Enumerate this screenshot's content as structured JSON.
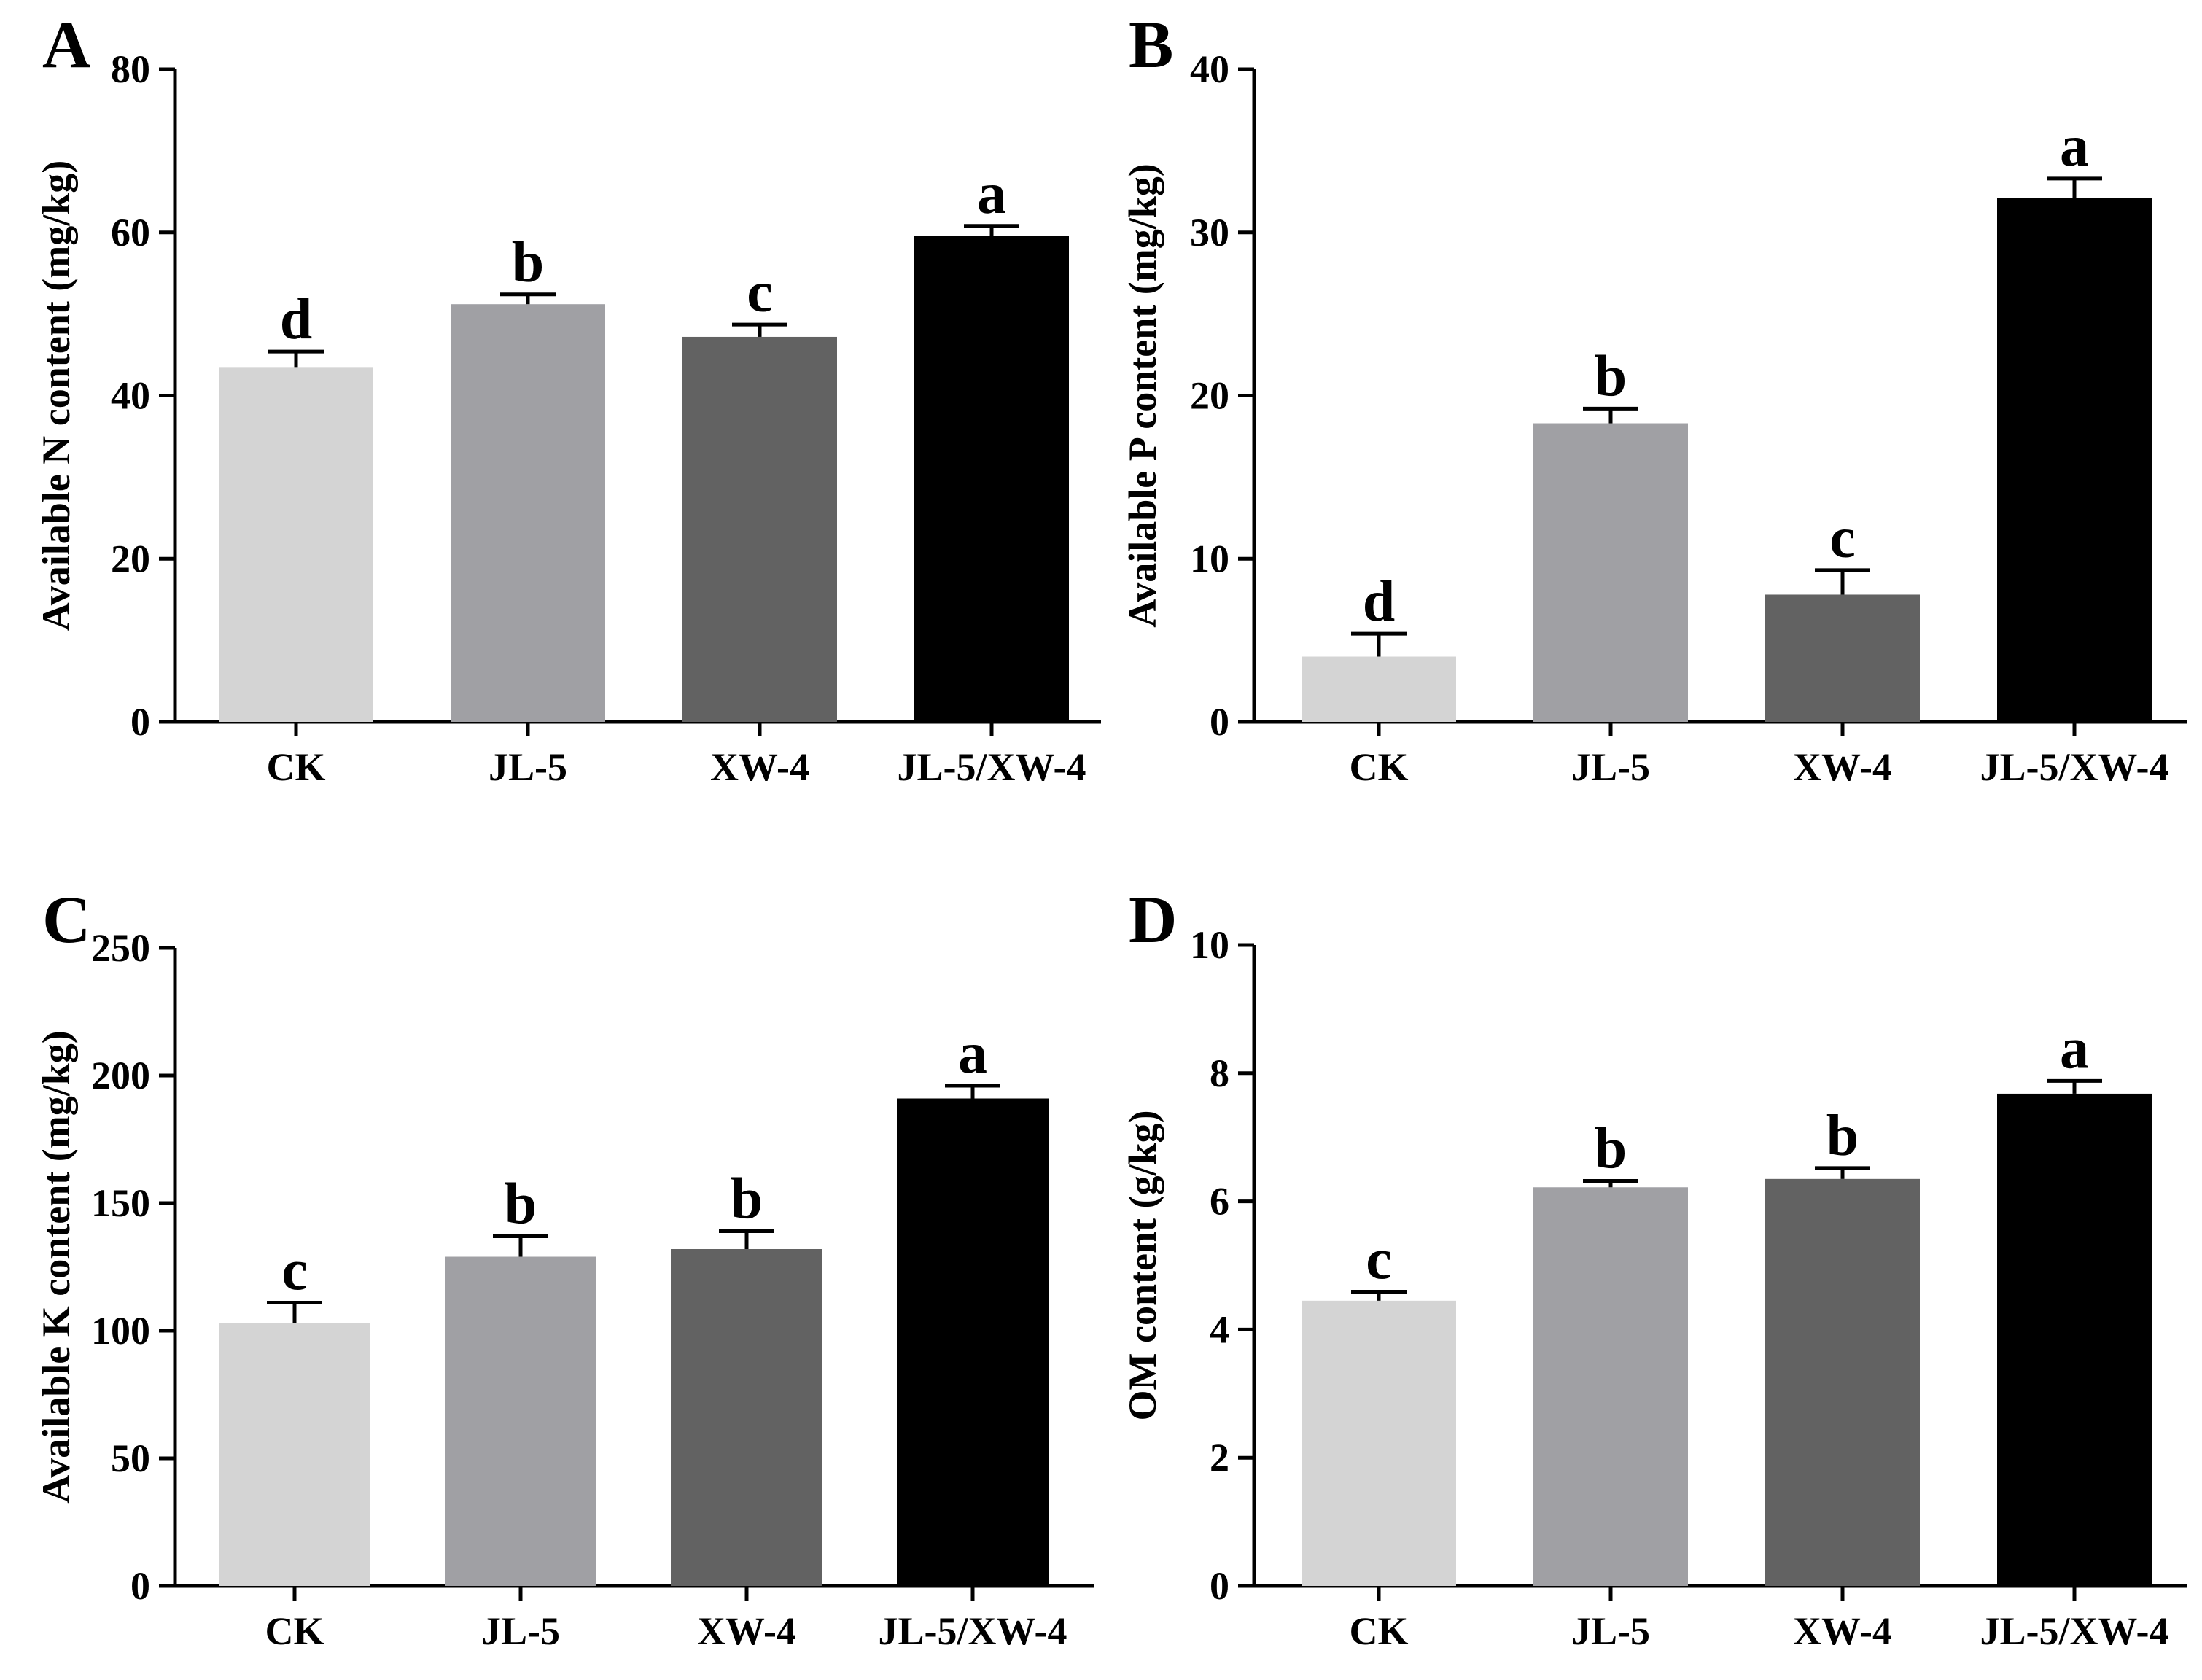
{
  "figure": {
    "colors": [
      "#d4d4d4",
      "#a0a0a4",
      "#626262",
      "#000000"
    ],
    "axis_color": "#000000"
  },
  "chart_data": [
    {
      "panel": "A",
      "type": "bar",
      "categories": [
        "CK",
        "JL-5",
        "XW-4",
        "JL-5/XW-4"
      ],
      "values": [
        43.5,
        51.2,
        47.2,
        59.6
      ],
      "errors": [
        1.9,
        1.2,
        1.5,
        1.2
      ],
      "significance": [
        "d",
        "b",
        "c",
        "a"
      ],
      "ylabel": "Available N content (mg/kg)",
      "ylim": [
        0,
        80
      ],
      "yticks": [
        0,
        20,
        40,
        60,
        80
      ]
    },
    {
      "panel": "B",
      "type": "bar",
      "categories": [
        "CK",
        "JL-5",
        "XW-4",
        "JL-5/XW-4"
      ],
      "values": [
        4.0,
        18.3,
        7.8,
        32.1
      ],
      "errors": [
        1.4,
        0.9,
        1.5,
        1.2
      ],
      "significance": [
        "d",
        "b",
        "c",
        "a"
      ],
      "ylabel": "Available P content (mg/kg)",
      "ylim": [
        0,
        40
      ],
      "yticks": [
        0,
        10,
        20,
        30,
        40
      ]
    },
    {
      "panel": "C",
      "type": "bar",
      "categories": [
        "CK",
        "JL-5",
        "XW-4",
        "JL-5/XW-4"
      ],
      "values": [
        103,
        129,
        132,
        191
      ],
      "errors": [
        8,
        8,
        7,
        5
      ],
      "significance": [
        "c",
        "b",
        "b",
        "a"
      ],
      "ylabel": "Available K content (mg/kg)",
      "ylim": [
        0,
        250
      ],
      "yticks": [
        0,
        50,
        100,
        150,
        200,
        250
      ]
    },
    {
      "panel": "D",
      "type": "bar",
      "categories": [
        "CK",
        "JL-5",
        "XW-4",
        "JL-5/XW-4"
      ],
      "values": [
        4.45,
        6.22,
        6.35,
        7.68
      ],
      "errors": [
        0.14,
        0.1,
        0.17,
        0.2
      ],
      "significance": [
        "c",
        "b",
        "b",
        "a"
      ],
      "ylabel": "OM content (g/kg)",
      "ylim": [
        0,
        10
      ],
      "yticks": [
        0,
        2,
        4,
        6,
        8,
        10
      ]
    }
  ]
}
